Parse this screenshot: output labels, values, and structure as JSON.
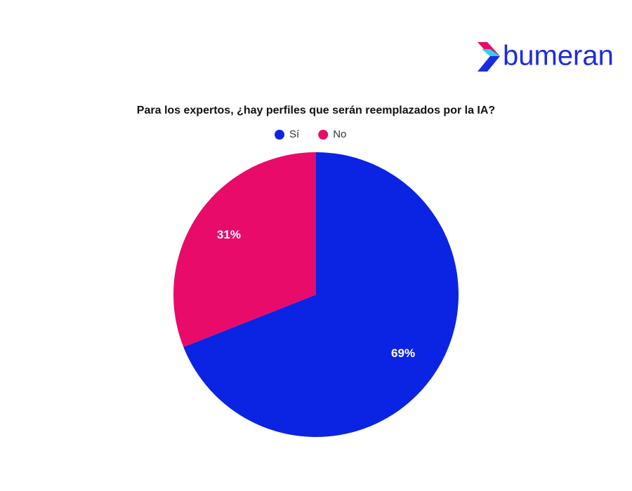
{
  "brand": "bumeran",
  "chart_data": {
    "type": "pie",
    "title": "Para los expertos, ¿hay perfiles que serán reemplazados por la IA?",
    "categories": [
      "Sí",
      "No"
    ],
    "values": [
      69,
      31
    ],
    "value_labels": [
      "69%",
      "31%"
    ],
    "colors": [
      "#0b24e4",
      "#e80b6a"
    ],
    "legend": "top",
    "start_angle": 0,
    "direction": "clockwise"
  }
}
